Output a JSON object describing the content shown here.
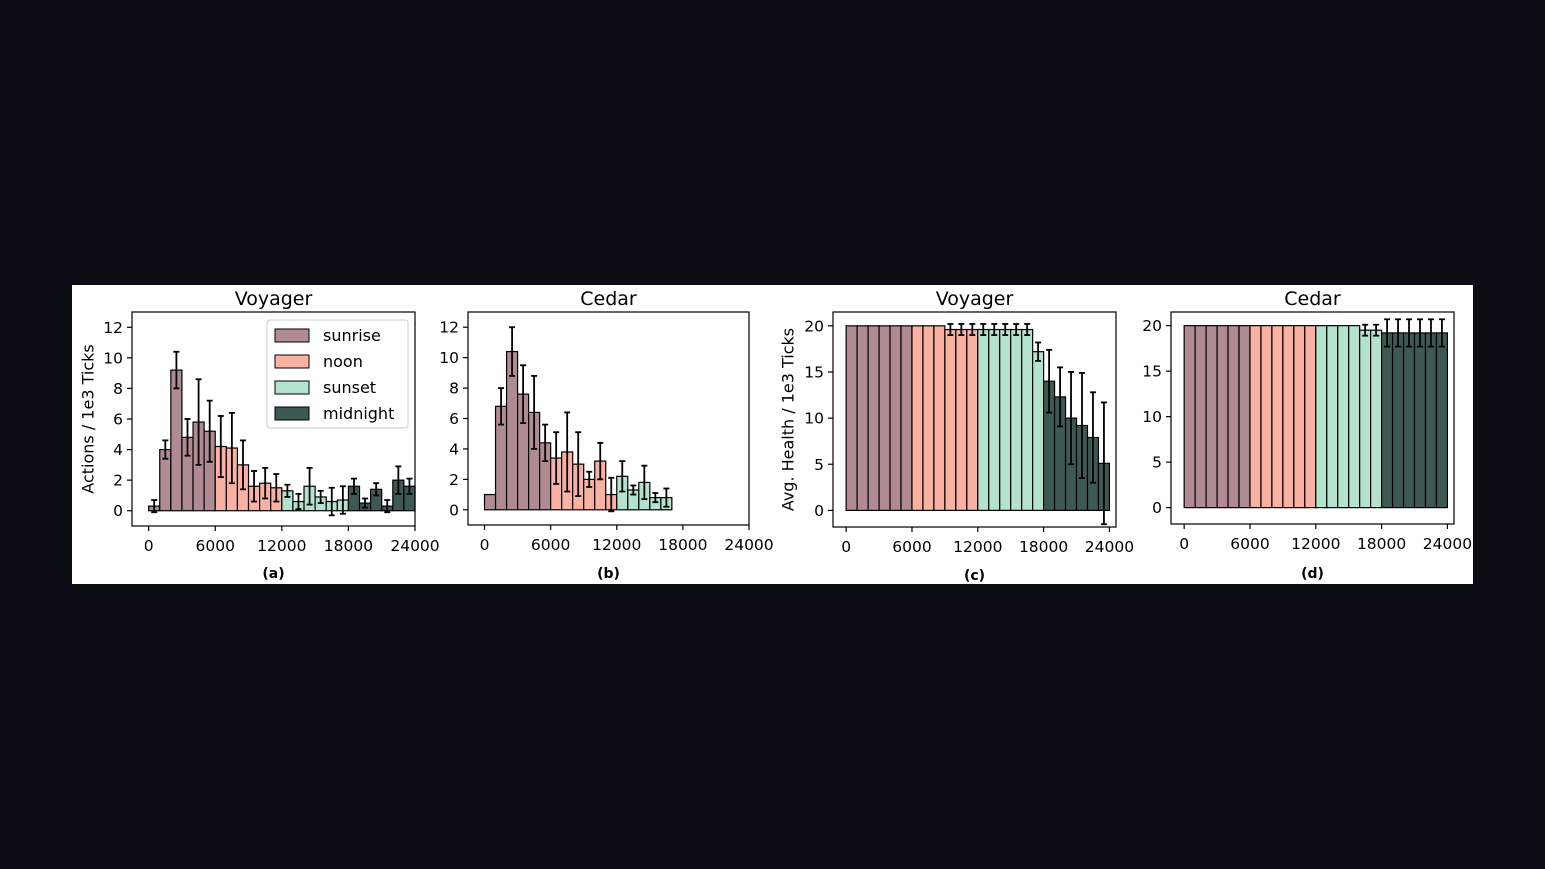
{
  "chart_data": [
    {
      "type": "bar",
      "title": "Voyager",
      "caption": "(a)",
      "ylabel": "Actions / 1e3 Ticks",
      "xlabel": "",
      "xlim": [
        -1500,
        24000
      ],
      "ylim": [
        -1,
        13
      ],
      "xticks": [
        "0",
        "6000",
        "12000",
        "18000",
        "24000"
      ],
      "yticks": [
        "0",
        "2",
        "4",
        "6",
        "8",
        "10",
        "12"
      ],
      "legend": {
        "placement": "top-right",
        "entries": [
          "sunrise",
          "noon",
          "sunset",
          "midnight"
        ]
      },
      "bar_width": 1000,
      "x": [
        0,
        1000,
        2000,
        3000,
        4000,
        5000,
        6000,
        7000,
        8000,
        9000,
        10000,
        11000,
        12000,
        13000,
        14000,
        15000,
        16000,
        17000,
        18000,
        19000,
        20000,
        21000,
        22000,
        23000
      ],
      "values": [
        0.3,
        4.0,
        9.2,
        4.8,
        5.8,
        5.2,
        4.2,
        4.1,
        3.0,
        1.6,
        1.8,
        1.5,
        1.3,
        0.6,
        1.6,
        0.9,
        0.6,
        0.7,
        1.6,
        0.5,
        1.4,
        0.3,
        2.0,
        1.6
      ],
      "errors": [
        0.4,
        0.6,
        1.2,
        1.2,
        2.8,
        2.0,
        2.0,
        2.3,
        1.6,
        1.0,
        1.0,
        0.9,
        0.4,
        0.5,
        1.2,
        0.4,
        0.9,
        0.9,
        0.5,
        0.3,
        0.4,
        0.4,
        0.9,
        0.5
      ],
      "phases": [
        "sunrise",
        "sunrise",
        "sunrise",
        "sunrise",
        "sunrise",
        "sunrise",
        "noon",
        "noon",
        "noon",
        "noon",
        "noon",
        "noon",
        "sunset",
        "sunset",
        "sunset",
        "sunset",
        "sunset",
        "sunset",
        "midnight",
        "midnight",
        "midnight",
        "midnight",
        "midnight",
        "midnight"
      ]
    },
    {
      "type": "bar",
      "title": "Cedar",
      "caption": "(b)",
      "ylabel": "",
      "xlabel": "",
      "xlim": [
        -1500,
        24000
      ],
      "ylim": [
        -1,
        13
      ],
      "xticks": [
        "0",
        "6000",
        "12000",
        "18000",
        "24000"
      ],
      "yticks": [
        "0",
        "2",
        "4",
        "6",
        "8",
        "10",
        "12"
      ],
      "bar_width": 1000,
      "x": [
        0,
        1000,
        2000,
        3000,
        4000,
        5000,
        6000,
        7000,
        8000,
        9000,
        10000,
        11000,
        12000,
        13000,
        14000,
        15000,
        16000,
        17000,
        18000,
        19000,
        20000,
        21000,
        22000,
        23000
      ],
      "values": [
        1.0,
        6.8,
        10.4,
        7.6,
        6.4,
        4.4,
        3.4,
        3.8,
        3.0,
        2.0,
        3.2,
        1.0,
        2.2,
        1.3,
        1.8,
        0.8,
        0.8,
        0.0,
        0.0,
        0.0,
        0.0,
        0.0,
        0.0,
        0.0
      ],
      "errors": [
        0.0,
        1.2,
        1.6,
        1.9,
        2.4,
        1.2,
        1.7,
        2.6,
        2.1,
        0.5,
        1.2,
        1.1,
        1.0,
        0.3,
        1.1,
        0.3,
        0.6,
        0.0,
        0.0,
        0.0,
        0.0,
        0.0,
        0.0,
        0.0
      ],
      "phases": [
        "sunrise",
        "sunrise",
        "sunrise",
        "sunrise",
        "sunrise",
        "sunrise",
        "noon",
        "noon",
        "noon",
        "noon",
        "noon",
        "noon",
        "sunset",
        "sunset",
        "sunset",
        "sunset",
        "sunset",
        "sunset",
        "midnight",
        "midnight",
        "midnight",
        "midnight",
        "midnight",
        "midnight"
      ]
    },
    {
      "type": "bar",
      "title": "Voyager",
      "caption": "(c)",
      "ylabel": "Avg. Health / 1e3 Ticks",
      "xlabel": "",
      "xlim": [
        -1200,
        24600
      ],
      "ylim": [
        -1.8,
        21.5
      ],
      "xticks": [
        "0",
        "6000",
        "12000",
        "18000",
        "24000"
      ],
      "yticks": [
        "0",
        "5",
        "10",
        "15",
        "20"
      ],
      "bar_width": 1000,
      "x": [
        0,
        1000,
        2000,
        3000,
        4000,
        5000,
        6000,
        7000,
        8000,
        9000,
        10000,
        11000,
        12000,
        13000,
        14000,
        15000,
        16000,
        17000,
        18000,
        19000,
        20000,
        21000,
        22000,
        23000
      ],
      "values": [
        20,
        20,
        20,
        20,
        20,
        20,
        20,
        20,
        20,
        19.6,
        19.6,
        19.6,
        19.6,
        19.6,
        19.6,
        19.6,
        19.6,
        17.2,
        14.0,
        12.3,
        10.0,
        9.2,
        7.9,
        5.1
      ],
      "errors": [
        0,
        0,
        0,
        0,
        0,
        0,
        0,
        0,
        0,
        0.6,
        0.6,
        0.6,
        0.6,
        0.6,
        0.6,
        0.6,
        0.6,
        1.0,
        3.4,
        3.2,
        5.0,
        5.7,
        4.9,
        6.6
      ],
      "phases": [
        "sunrise",
        "sunrise",
        "sunrise",
        "sunrise",
        "sunrise",
        "sunrise",
        "noon",
        "noon",
        "noon",
        "noon",
        "noon",
        "noon",
        "sunset",
        "sunset",
        "sunset",
        "sunset",
        "sunset",
        "sunset",
        "midnight",
        "midnight",
        "midnight",
        "midnight",
        "midnight",
        "midnight"
      ]
    },
    {
      "type": "bar",
      "title": "Cedar",
      "caption": "(d)",
      "ylabel": "",
      "xlabel": "",
      "xlim": [
        -1200,
        24600
      ],
      "ylim": [
        -1.8,
        21.5
      ],
      "xticks": [
        "0",
        "6000",
        "12000",
        "18000",
        "24000"
      ],
      "yticks": [
        "0",
        "5",
        "10",
        "15",
        "20"
      ],
      "bar_width": 1000,
      "x": [
        0,
        1000,
        2000,
        3000,
        4000,
        5000,
        6000,
        7000,
        8000,
        9000,
        10000,
        11000,
        12000,
        13000,
        14000,
        15000,
        16000,
        17000,
        18000,
        19000,
        20000,
        21000,
        22000,
        23000
      ],
      "values": [
        20,
        20,
        20,
        20,
        20,
        20,
        20,
        20,
        20,
        20,
        20,
        20,
        20,
        20,
        20,
        20,
        19.5,
        19.5,
        19.2,
        19.2,
        19.2,
        19.2,
        19.2,
        19.2
      ],
      "errors": [
        0,
        0,
        0,
        0,
        0,
        0,
        0,
        0,
        0,
        0,
        0,
        0,
        0,
        0,
        0,
        0,
        0.6,
        0.6,
        1.5,
        1.5,
        1.5,
        1.5,
        1.5,
        1.5
      ],
      "phases": [
        "sunrise",
        "sunrise",
        "sunrise",
        "sunrise",
        "sunrise",
        "sunrise",
        "noon",
        "noon",
        "noon",
        "noon",
        "noon",
        "noon",
        "sunset",
        "sunset",
        "sunset",
        "sunset",
        "sunset",
        "sunset",
        "midnight",
        "midnight",
        "midnight",
        "midnight",
        "midnight",
        "midnight"
      ]
    }
  ],
  "colors": {
    "sunrise": "#b08b91",
    "noon": "#f9b1a3",
    "sunset": "#b3e3cd",
    "midnight": "#3c5954",
    "edge": "#000000",
    "figure_background": "#ffffff",
    "page_background": "#0b0d14"
  }
}
